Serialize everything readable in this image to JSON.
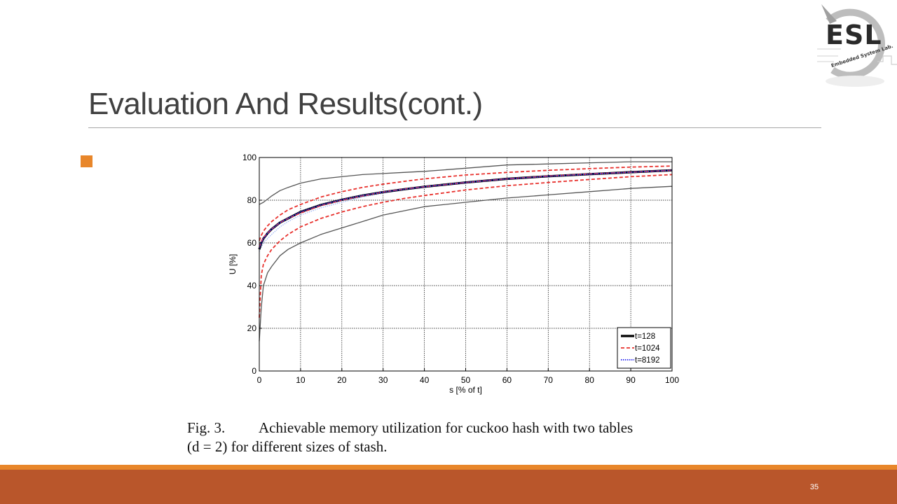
{
  "slide": {
    "title": "Evaluation And Results(cont.)",
    "page_number": "35"
  },
  "logo": {
    "text": "ESL",
    "subtitle": "Embedded System Lab."
  },
  "caption": {
    "fig_label": "Fig. 3.",
    "line1": "Achievable memory utilization for cuckoo hash with two tables",
    "line2": "(d = 2) for different sizes of stash."
  },
  "colors": {
    "accent_orange": "#e8862a",
    "footer_band": "#b9562b",
    "title_text": "#404040"
  },
  "chart_data": {
    "type": "line",
    "xlabel": "s [% of t]",
    "ylabel": "U [%]",
    "xlim": [
      0,
      100
    ],
    "ylim": [
      0,
      100
    ],
    "xticks": [
      0,
      10,
      20,
      30,
      40,
      50,
      60,
      70,
      80,
      90,
      100
    ],
    "yticks": [
      0,
      20,
      40,
      60,
      80,
      100
    ],
    "grid": true,
    "legend_position": "bottom-right",
    "x": [
      0,
      0.5,
      1,
      2,
      3,
      5,
      7,
      10,
      15,
      20,
      25,
      30,
      35,
      40,
      50,
      60,
      70,
      80,
      90,
      100
    ],
    "series": [
      {
        "name": "t=128",
        "style": "solid-black",
        "role": "mean",
        "values": [
          57,
          60,
          62,
          64.5,
          66.5,
          69.5,
          71.5,
          74.5,
          77.8,
          80.2,
          82.2,
          83.8,
          85.1,
          86.3,
          88.3,
          90,
          91.2,
          92.2,
          93.1,
          94
        ]
      },
      {
        "name": "",
        "style": "solid-gray",
        "role": "upper-bound",
        "values": [
          78,
          78.5,
          79,
          80.5,
          82,
          84.5,
          86,
          88,
          90,
          91,
          92,
          92.5,
          93,
          93.5,
          95,
          96.5,
          97,
          97.5,
          98,
          98
        ]
      },
      {
        "name": "",
        "style": "solid-gray",
        "role": "lower-bound",
        "values": [
          14,
          30,
          40,
          46,
          49,
          54,
          57,
          60,
          64,
          67,
          70,
          73,
          75,
          77,
          79,
          81,
          82.5,
          84,
          85.5,
          86.5
        ]
      },
      {
        "name": "t=1024",
        "style": "dashed-red",
        "role": "mean",
        "values": [
          58,
          60.5,
          62.5,
          64.5,
          66.5,
          69.5,
          71.5,
          74,
          77.5,
          80,
          82,
          83.8,
          85.2,
          86.3,
          88.3,
          90,
          91.3,
          92.3,
          93.1,
          94
        ]
      },
      {
        "name": "",
        "style": "dashed-red",
        "role": "upper",
        "values": [
          61,
          63.5,
          65.5,
          68,
          70,
          73,
          75.5,
          78,
          81.5,
          84,
          86,
          87.5,
          88.8,
          90,
          91.8,
          93,
          94,
          94.8,
          95.5,
          96
        ]
      },
      {
        "name": "",
        "style": "dashed-red",
        "role": "lower",
        "values": [
          25,
          45,
          50,
          54,
          57,
          61,
          64,
          67.5,
          71.5,
          74.5,
          77,
          79,
          80.8,
          82.2,
          84.8,
          86.8,
          88.3,
          89.7,
          91,
          92
        ]
      },
      {
        "name": "t=8192",
        "style": "dotted-blue",
        "role": "mean",
        "values": [
          57.5,
          60,
          62,
          64.5,
          66.5,
          69.5,
          71.5,
          74.5,
          77.8,
          80.2,
          82.2,
          83.8,
          85.1,
          86.3,
          88.3,
          90,
          91.2,
          92.2,
          93.1,
          94
        ]
      },
      {
        "name": "",
        "style": "dotted-blue-light",
        "role": "lower",
        "values": [
          56,
          58,
          60,
          62,
          64,
          67.5,
          70,
          73,
          76.5,
          79,
          81.5,
          83.3,
          84.8,
          86,
          88,
          89.8,
          91,
          92,
          93,
          93.8
        ]
      }
    ],
    "legend": [
      "t=128",
      "t=1024",
      "t=8192"
    ]
  }
}
